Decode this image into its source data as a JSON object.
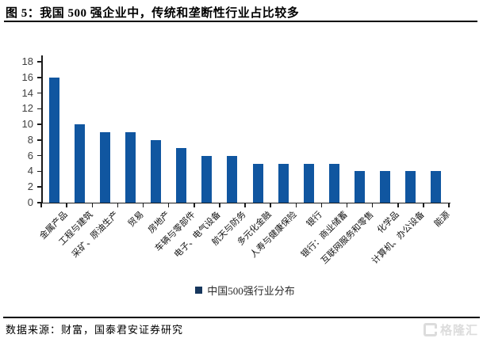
{
  "title": "图 5：我国 500 强企业中，传统和垄断性行业占比较多",
  "chart_data": {
    "type": "bar",
    "title": "图 5：我国 500 强企业中，传统和垄断性行业占比较多",
    "categories": [
      "金属产品",
      "工程与建筑",
      "采矿、原油生产",
      "贸易",
      "房地产",
      "车辆与零部件",
      "电子、电气设备",
      "航天与防务",
      "多元化金融",
      "人寿与健康保险",
      "银行",
      "银行：商业储蓄",
      "互联网服务和零售",
      "化学品",
      "计算机、办公设备",
      "能源"
    ],
    "values": [
      16,
      10,
      9,
      9,
      8,
      7,
      6,
      6,
      5,
      5,
      5,
      5,
      4,
      4,
      4,
      4
    ],
    "legend": "中国500强行业分布",
    "legend_position": "bottom-center",
    "xlabel": "",
    "ylabel": "",
    "ylim": [
      0,
      18
    ],
    "yticks": [
      0,
      2,
      4,
      6,
      8,
      10,
      12,
      14,
      16,
      18
    ],
    "grid": "off",
    "bar_color": "#1056A0",
    "legend_marker_color": "#17375D",
    "x_label_rotation_deg": 45
  },
  "footer": {
    "source_text": "数据来源：财富，国泰君安证券研究"
  },
  "watermark": {
    "logo_text": "格隆汇",
    "logo_icon": "g-square-icon"
  }
}
